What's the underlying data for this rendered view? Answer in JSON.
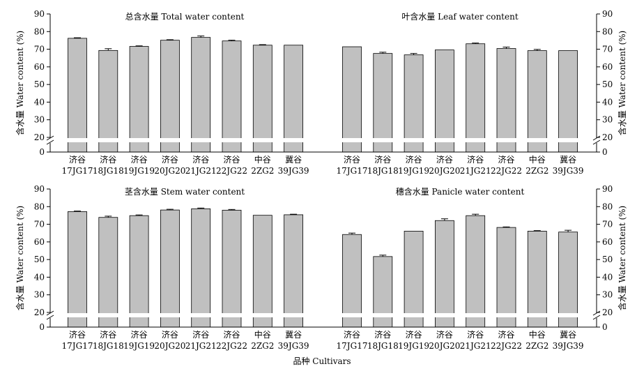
{
  "chart_data": [
    {
      "type": "bar",
      "title": "总含水量 Total water content",
      "ylabel": "含水量 Water content (%)",
      "categories": [
        [
          "济谷",
          "17JG17"
        ],
        [
          "济谷",
          "18JG18"
        ],
        [
          "济谷",
          "19JG19"
        ],
        [
          "济谷",
          "20JG20"
        ],
        [
          "济谷",
          "21JG21"
        ],
        [
          "济谷",
          "22JG22"
        ],
        [
          "中谷",
          "2ZG2"
        ],
        [
          "冀谷",
          "39JG39"
        ]
      ],
      "values": [
        76.2,
        69.3,
        71.6,
        75.1,
        76.7,
        74.7,
        72.3,
        72.3
      ],
      "errors": [
        0.3,
        1.0,
        0.3,
        0.3,
        0.8,
        0.4,
        0.3,
        0.0
      ],
      "yticks": [
        0,
        20,
        30,
        40,
        50,
        60,
        70,
        80,
        90
      ],
      "ylim": [
        0,
        90
      ],
      "axis_break": [
        0,
        20
      ]
    },
    {
      "type": "bar",
      "title": "叶含水量 Leaf water content",
      "ylabel": "含水量 Water content (%)",
      "categories": [
        [
          "济谷",
          "17JG17"
        ],
        [
          "济谷",
          "18JG18"
        ],
        [
          "济谷",
          "19JG19"
        ],
        [
          "济谷",
          "20JG20"
        ],
        [
          "济谷",
          "21JG21"
        ],
        [
          "济谷",
          "22JG22"
        ],
        [
          "中谷",
          "2ZG2"
        ],
        [
          "冀谷",
          "39JG39"
        ]
      ],
      "values": [
        71.4,
        67.6,
        66.8,
        69.6,
        73.1,
        70.4,
        69.2,
        69.2
      ],
      "errors": [
        0.0,
        0.7,
        0.8,
        0.0,
        0.4,
        0.8,
        0.7,
        0.0
      ],
      "yticks": [
        0,
        20,
        30,
        40,
        50,
        60,
        70,
        80,
        90
      ],
      "ylim": [
        0,
        90
      ],
      "axis_break": [
        0,
        20
      ]
    },
    {
      "type": "bar",
      "title": "茎含水量 Stem water content",
      "ylabel": "含水量 Water content (%)",
      "categories": [
        [
          "济谷",
          "17JG17"
        ],
        [
          "济谷",
          "18JG18"
        ],
        [
          "济谷",
          "19JG19"
        ],
        [
          "济谷",
          "20JG20"
        ],
        [
          "济谷",
          "21JG21"
        ],
        [
          "济谷",
          "22JG22"
        ],
        [
          "中谷",
          "2ZG2"
        ],
        [
          "冀谷",
          "39JG39"
        ]
      ],
      "values": [
        77.2,
        73.9,
        74.9,
        78.1,
        78.8,
        78.0,
        75.1,
        75.4
      ],
      "errors": [
        0.3,
        0.7,
        0.4,
        0.4,
        0.4,
        0.4,
        0.0,
        0.3
      ],
      "yticks": [
        0,
        20,
        30,
        40,
        50,
        60,
        70,
        80,
        90
      ],
      "ylim": [
        0,
        90
      ],
      "axis_break": [
        0,
        20
      ]
    },
    {
      "type": "bar",
      "title": "穗含水量 Panicle water content",
      "ylabel": "含水量 Water content (%)",
      "categories": [
        [
          "济谷",
          "17JG17"
        ],
        [
          "济谷",
          "18JG18"
        ],
        [
          "济谷",
          "19JG19"
        ],
        [
          "济谷",
          "20JG20"
        ],
        [
          "济谷",
          "21JG21"
        ],
        [
          "济谷",
          "22JG22"
        ],
        [
          "中谷",
          "2ZG2"
        ],
        [
          "冀谷",
          "39JG39"
        ]
      ],
      "values": [
        64.2,
        51.7,
        66.1,
        72.1,
        74.9,
        68.2,
        66.1,
        65.6
      ],
      "errors": [
        0.8,
        0.8,
        0.0,
        1.0,
        0.8,
        0.3,
        0.3,
        1.0
      ],
      "yticks": [
        0,
        20,
        30,
        40,
        50,
        60,
        70,
        80,
        90
      ],
      "ylim": [
        0,
        90
      ],
      "axis_break": [
        0,
        20
      ]
    }
  ],
  "xlabel": "品种 Cultivars",
  "style": {
    "bar_fill": "#c0c0c0",
    "bar_stroke": "#000000",
    "axis_color": "#000000",
    "background": "#ffffff"
  }
}
